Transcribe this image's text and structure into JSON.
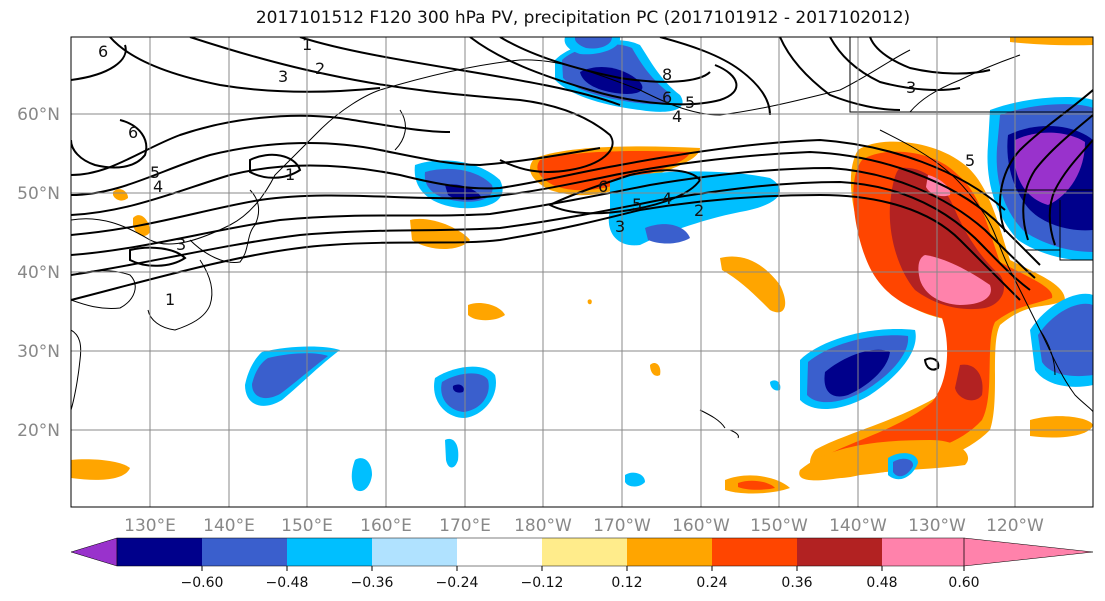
{
  "title": "2017101512 F120 300 hPa PV, precipitation PC (2017101912 - 2017102012)",
  "lat_labels": [
    "60°N",
    "50°N",
    "40°N",
    "30°N",
    "20°N"
  ],
  "lon_labels": [
    "130°E",
    "140°E",
    "150°E",
    "160°E",
    "170°E",
    "180°W",
    "170°W",
    "160°W",
    "150°W",
    "140°W",
    "130°W",
    "120°W"
  ],
  "colorbar": {
    "ticks": [
      "−0.60",
      "−0.48",
      "−0.36",
      "−0.24",
      "−0.12",
      "0.12",
      "0.24",
      "0.36",
      "0.48",
      "0.60"
    ],
    "colors": [
      "#9932cc",
      "#00008b",
      "#3a5fcd",
      "#00bfff",
      "#b0e2ff",
      "#ffffff",
      "#ffec8b",
      "#ffa500",
      "#ff4500",
      "#b22222",
      "#ff82ab"
    ]
  },
  "pv_contour_labels": [
    "6",
    "1",
    "2",
    "3",
    "6",
    "5",
    "4",
    "1",
    "3",
    "8",
    "6",
    "5",
    "4",
    "6",
    "5",
    "4",
    "3",
    "2",
    "3",
    "5",
    "1"
  ]
}
